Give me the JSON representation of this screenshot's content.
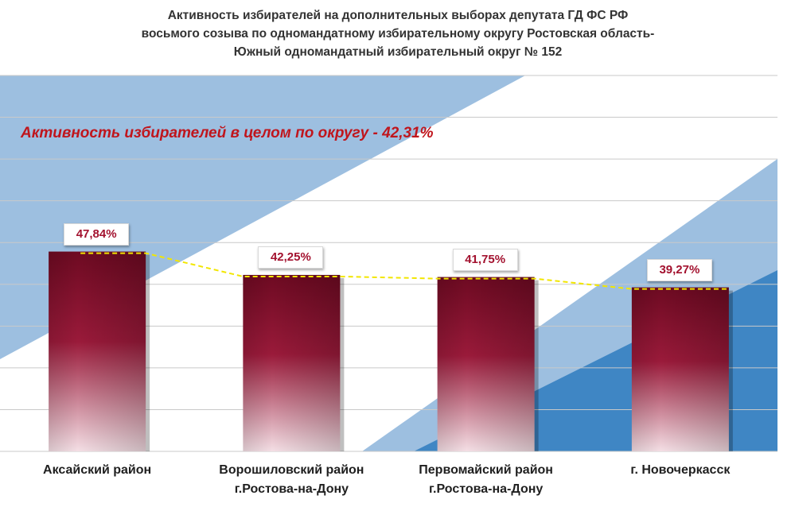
{
  "chart_data": {
    "type": "bar",
    "title_lines": [
      "Активность избирателей на дополнительных выборах депутата ГД ФС РФ",
      "восьмого созыва по одномандатному избирательному округу Ростовская область-",
      "Южный одномандатный избирательный округ № 152"
    ],
    "annotation": "Активность избирателей в целом по округу - 42,31%",
    "categories": [
      [
        "Аксайский район"
      ],
      [
        "Ворошиловский район",
        "г.Ростова-на-Дону"
      ],
      [
        "Первомайский район",
        "г.Ростова-на-Дону"
      ],
      [
        "г. Новочеркасск"
      ]
    ],
    "values": [
      47.84,
      42.25,
      41.75,
      39.27
    ],
    "value_labels": [
      "47,84%",
      "42,25%",
      "41,75%",
      "39,27%"
    ],
    "ylim": [
      0,
      90
    ],
    "trendline": true,
    "colors": {
      "bar_top": "#6e0a22",
      "bar_bottom": "#f4dfe5",
      "label_text": "#a3122f",
      "annotation_text": "#c0151c",
      "band_light": "#9dbfe0",
      "band_dark": "#3f86c4",
      "trend": "#f2e600"
    }
  }
}
